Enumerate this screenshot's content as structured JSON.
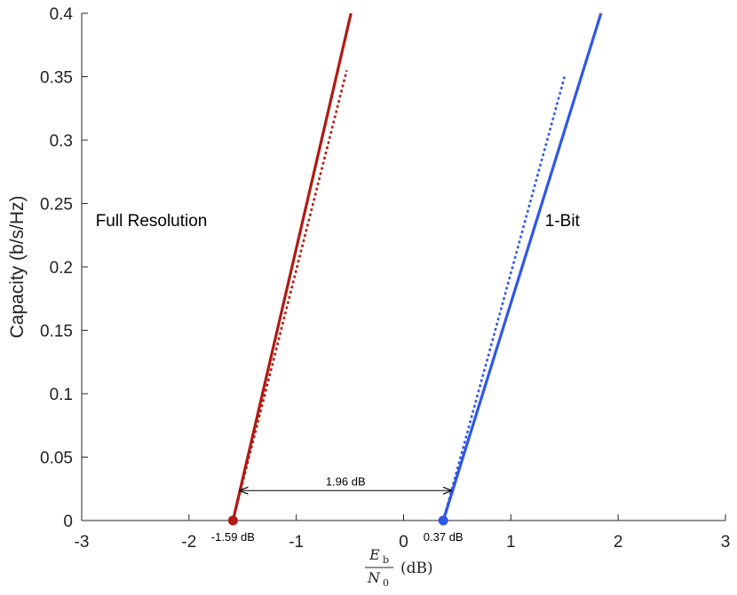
{
  "chart_data": {
    "type": "line",
    "xlim": [
      -3,
      3
    ],
    "ylim": [
      0,
      0.4
    ],
    "xticks": [
      -3,
      -2,
      -1,
      0,
      1,
      2,
      3
    ],
    "yticks": [
      0,
      0.05,
      0.1,
      0.15,
      0.2,
      0.25,
      0.3,
      0.35,
      0.4
    ],
    "xtick_labels": [
      "-3",
      "-2",
      "-1",
      "0",
      "1",
      "2",
      "3"
    ],
    "ytick_labels": [
      "0",
      "0.05",
      "0.1",
      "0.15",
      "0.2",
      "0.25",
      "0.3",
      "0.35",
      "0.4"
    ],
    "ylabel": "Capacity (b/s/Hz)",
    "xlabel": {
      "numerator": "E",
      "numerator_sub": "b",
      "denominator": "N",
      "denominator_sub": "0",
      "unit": "(dB)"
    },
    "grid": false,
    "series": [
      {
        "name": "Full Resolution",
        "style": "solid",
        "color": "#b01a12",
        "x": [
          -1.59,
          -0.49
        ],
        "y": [
          0,
          0.4
        ]
      },
      {
        "name": "Full Resolution",
        "style": "dotted",
        "color": "#b01a12",
        "x": [
          -1.59,
          -0.53
        ],
        "y": [
          0,
          0.355
        ]
      },
      {
        "name": "1-Bit",
        "style": "solid",
        "color": "#2e57e6",
        "x": [
          0.37,
          1.84
        ],
        "y": [
          0,
          0.4
        ]
      },
      {
        "name": "1-Bit",
        "style": "dotted",
        "color": "#2e57e6",
        "x": [
          0.37,
          1.5
        ],
        "y": [
          0,
          0.35
        ]
      }
    ],
    "markers": [
      {
        "x": -1.59,
        "y": 0,
        "color": "#b01a12",
        "label": "-1.59 dB"
      },
      {
        "x": 0.37,
        "y": 0,
        "color": "#2e57e6",
        "label": "0.37 dB"
      }
    ],
    "arrow": {
      "x_from": -1.53,
      "x_to": 0.45,
      "y": 0.025,
      "label": "1.96 dB"
    },
    "annotations": [
      {
        "text": "Full Resolution",
        "x": -2.35,
        "y": 0.232
      },
      {
        "text": "1-Bit",
        "x": 1.48,
        "y": 0.232
      }
    ]
  }
}
